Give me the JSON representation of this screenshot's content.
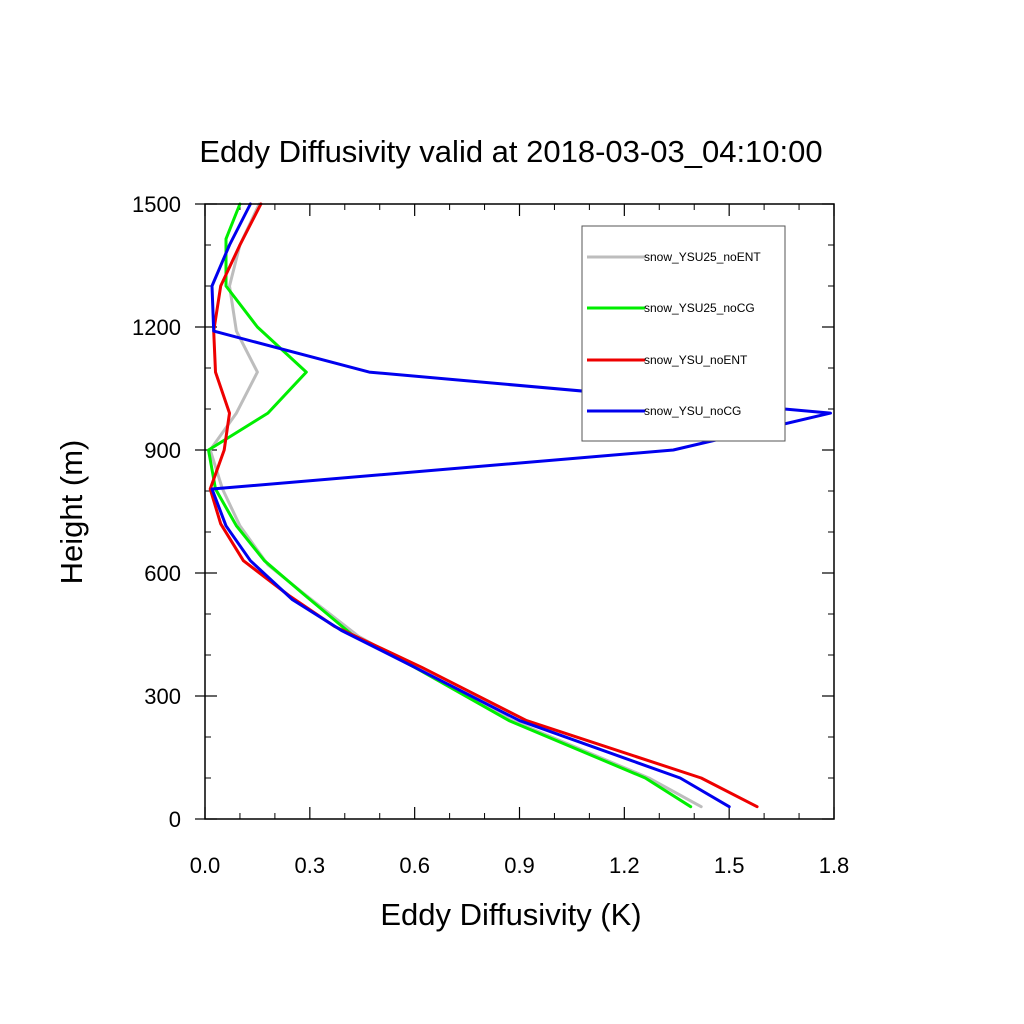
{
  "chart_data": {
    "type": "line",
    "title": "Eddy Diffusivity valid at 2018-03-03_04:10:00",
    "xlabel": "Eddy Diffusivity (K)",
    "ylabel": "Height (m)",
    "xlim": [
      0,
      1.8
    ],
    "ylim": [
      0,
      1500
    ],
    "xticks": [
      "0.0",
      "0.3",
      "0.6",
      "0.9",
      "1.2",
      "1.5",
      "1.8"
    ],
    "yticks": [
      "0",
      "300",
      "600",
      "900",
      "1200",
      "1500"
    ],
    "legend_position": "top-right",
    "grid": false,
    "series": [
      {
        "name": "snow_YSU25_noENT",
        "color": "#bdbdbd",
        "points": [
          [
            1.42,
            30
          ],
          [
            1.27,
            100
          ],
          [
            0.88,
            240
          ],
          [
            0.6,
            370
          ],
          [
            0.44,
            445
          ],
          [
            0.29,
            545
          ],
          [
            0.18,
            620
          ],
          [
            0.1,
            715
          ],
          [
            0.05,
            805
          ],
          [
            0.015,
            900
          ],
          [
            0.09,
            990
          ],
          [
            0.15,
            1090
          ],
          [
            0.09,
            1190
          ],
          [
            0.07,
            1300
          ],
          [
            0.1,
            1400
          ],
          [
            0.155,
            1500
          ]
        ]
      },
      {
        "name": "snow_YSU25_noCG",
        "color": "#00ee00",
        "points": [
          [
            1.39,
            30
          ],
          [
            1.26,
            100
          ],
          [
            0.87,
            240
          ],
          [
            0.6,
            370
          ],
          [
            0.42,
            450
          ],
          [
            0.28,
            550
          ],
          [
            0.17,
            630
          ],
          [
            0.09,
            715
          ],
          [
            0.03,
            805
          ],
          [
            0.01,
            900
          ],
          [
            0.18,
            990
          ],
          [
            0.29,
            1090
          ],
          [
            0.15,
            1200
          ],
          [
            0.06,
            1300
          ],
          [
            0.06,
            1415
          ],
          [
            0.1,
            1500
          ]
        ]
      },
      {
        "name": "snow_YSU_noENT",
        "color": "#ee0000",
        "points": [
          [
            1.58,
            30
          ],
          [
            1.42,
            100
          ],
          [
            0.92,
            240
          ],
          [
            0.62,
            370
          ],
          [
            0.37,
            470
          ],
          [
            0.24,
            545
          ],
          [
            0.11,
            630
          ],
          [
            0.045,
            720
          ],
          [
            0.015,
            805
          ],
          [
            0.055,
            900
          ],
          [
            0.07,
            990
          ],
          [
            0.03,
            1090
          ],
          [
            0.025,
            1190
          ],
          [
            0.045,
            1300
          ],
          [
            0.1,
            1400
          ],
          [
            0.16,
            1500
          ]
        ]
      },
      {
        "name": "snow_YSU_noCG",
        "color": "#0000ee",
        "points": [
          [
            1.5,
            30
          ],
          [
            1.36,
            100
          ],
          [
            0.9,
            240
          ],
          [
            0.6,
            370
          ],
          [
            0.39,
            460
          ],
          [
            0.25,
            535
          ],
          [
            0.13,
            630
          ],
          [
            0.06,
            715
          ],
          [
            0.02,
            805
          ],
          [
            1.34,
            900
          ],
          [
            1.79,
            990
          ],
          [
            0.47,
            1090
          ],
          [
            0.025,
            1190
          ],
          [
            0.02,
            1300
          ],
          [
            0.07,
            1400
          ],
          [
            0.13,
            1500
          ]
        ]
      }
    ]
  }
}
